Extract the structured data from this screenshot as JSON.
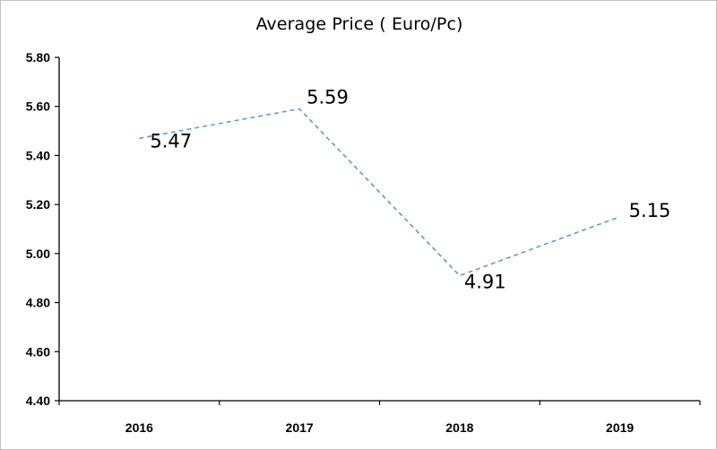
{
  "chart_data": {
    "type": "line",
    "title": "Average Price ( Euro/Pc)",
    "xlabel": "",
    "ylabel": "",
    "categories": [
      "2016",
      "2017",
      "2018",
      "2019"
    ],
    "series": [
      {
        "values": [
          5.47,
          5.59,
          4.91,
          5.15
        ],
        "data_labels": [
          "5.47",
          "5.59",
          "4.91",
          "5.15"
        ],
        "color": "#5b9bd5",
        "line_style": "dashed"
      }
    ],
    "ylim": [
      4.4,
      5.8
    ],
    "yticks": [
      4.4,
      4.6,
      4.8,
      5.0,
      5.2,
      5.4,
      5.6,
      5.8
    ],
    "ytick_labels": [
      "4.40",
      "4.60",
      "4.80",
      "5.00",
      "5.20",
      "5.40",
      "5.60",
      "5.80"
    ],
    "grid": false,
    "legend": "none"
  }
}
